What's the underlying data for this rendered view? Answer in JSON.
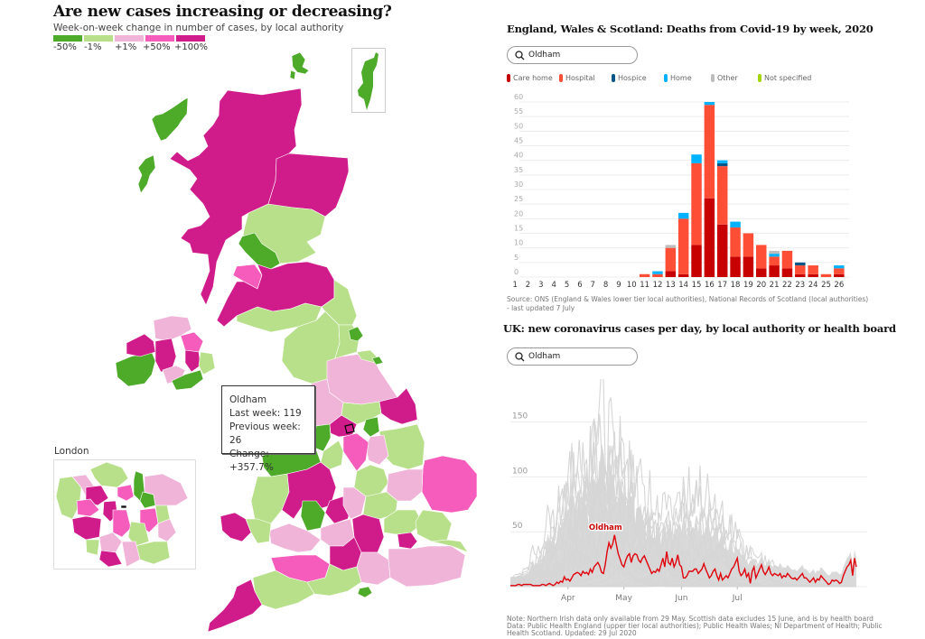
{
  "left_panel": {
    "title": "Are new cases increasing or decreasing?",
    "subtitle": "Week-on-week change in number of cases, by local authority",
    "legend": [
      {
        "label": "-50%",
        "color": "#4dab29"
      },
      {
        "label": "-1%",
        "color": "#b8e08a"
      },
      {
        "label": "+1%",
        "color": "#f0b4d8"
      },
      {
        "label": "+50%",
        "color": "#f55cbc"
      },
      {
        "label": "+100%",
        "color": "#d01c8b"
      }
    ],
    "tooltip": {
      "name": "Oldham",
      "last_week": "Last week: 119",
      "previous_week": "Previous week: 26",
      "change": "Change: +357.7%"
    },
    "london_label": "London"
  },
  "chart_data": [
    {
      "type": "bar",
      "stacked": true,
      "title": "England, Wales & Scotland: Deaths from Covid-19 by week, 2020",
      "search": {
        "value": "Oldham"
      },
      "categories": [
        "1",
        "2",
        "3",
        "4",
        "5",
        "6",
        "7",
        "8",
        "9",
        "10",
        "11",
        "12",
        "13",
        "14",
        "15",
        "16",
        "17",
        "18",
        "19",
        "20",
        "21",
        "22",
        "23",
        "24",
        "25",
        "26"
      ],
      "series": [
        {
          "name": "Care home",
          "color": "#c70000",
          "values": [
            0,
            0,
            0,
            0,
            0,
            0,
            0,
            0,
            0,
            0,
            0,
            0,
            2,
            1,
            11,
            27,
            18,
            7,
            7,
            3,
            4,
            3,
            1,
            1,
            0,
            1
          ]
        },
        {
          "name": "Hospital",
          "color": "#ff4e36",
          "values": [
            0,
            0,
            0,
            0,
            0,
            0,
            0,
            0,
            0,
            0,
            1,
            1,
            8,
            19,
            28,
            32,
            20,
            10,
            8,
            8,
            3,
            6,
            3,
            3,
            1,
            2
          ]
        },
        {
          "name": "Hospice",
          "color": "#005689",
          "values": [
            0,
            0,
            0,
            0,
            0,
            0,
            0,
            0,
            0,
            0,
            0,
            0,
            0,
            0,
            0,
            0,
            1,
            0,
            0,
            0,
            0,
            0,
            1,
            0,
            0,
            0
          ]
        },
        {
          "name": "Home",
          "color": "#00b2ff",
          "values": [
            0,
            0,
            0,
            0,
            0,
            0,
            0,
            0,
            0,
            0,
            0,
            1,
            0,
            2,
            3,
            1,
            1,
            2,
            0,
            0,
            1,
            0,
            0,
            0,
            0,
            1
          ]
        },
        {
          "name": "Other",
          "color": "#bdbdbd",
          "values": [
            0,
            0,
            0,
            0,
            0,
            0,
            0,
            0,
            0,
            0,
            0,
            0,
            1,
            0,
            0,
            0,
            0,
            0,
            0,
            0,
            1,
            0,
            0,
            0,
            0,
            0
          ]
        },
        {
          "name": "Not specified",
          "color": "#a4d40a",
          "values": [
            0,
            0,
            0,
            0,
            0,
            0,
            0,
            0,
            0,
            0,
            0,
            0,
            0,
            0,
            0,
            0,
            0,
            0,
            0,
            0,
            0,
            0,
            0,
            0,
            0,
            0
          ]
        }
      ],
      "yticks": [
        0,
        5,
        10,
        15,
        20,
        25,
        30,
        35,
        40,
        45,
        50,
        55,
        60
      ],
      "ylim": [
        0,
        60
      ],
      "xlabel": "",
      "ylabel": "",
      "grid": true,
      "legend_position": "top-left",
      "source": "Source: ONS (England & Wales lower tier local authorities), National Records of Scotland (local authorities)",
      "source_line2": "- last updated 7 July"
    },
    {
      "type": "line",
      "title": "UK: new coronavirus cases per day, by local authority or health board",
      "search": {
        "value": "Oldham"
      },
      "highlight": {
        "name": "Oldham",
        "color": "#e0000a"
      },
      "background_series_color": "#d2d2d2",
      "x_start": "2020-03-01",
      "x_end": "2020-07-27",
      "xticks": [
        "Apr",
        "May",
        "Jun",
        "Jul"
      ],
      "yticks": [
        0,
        50,
        100,
        150
      ],
      "ylim": [
        0,
        185
      ],
      "grid": true,
      "highlight_values": [
        1,
        1,
        1,
        1,
        2,
        2,
        1,
        2,
        2,
        2,
        2,
        2,
        1,
        1,
        1,
        1,
        1,
        2,
        2,
        1,
        2,
        3,
        2,
        1,
        2,
        4,
        3,
        5,
        4,
        9,
        6,
        7,
        5,
        8,
        11,
        12,
        13,
        12,
        10,
        14,
        12,
        13,
        11,
        16,
        13,
        18,
        20,
        22,
        19,
        13,
        12,
        20,
        32,
        40,
        35,
        39,
        47,
        38,
        30,
        25,
        20,
        18,
        24,
        28,
        30,
        22,
        28,
        30,
        29,
        24,
        22,
        26,
        28,
        24,
        20,
        16,
        12,
        14,
        13,
        16,
        14,
        20,
        26,
        18,
        32,
        22,
        20,
        26,
        18,
        22,
        29,
        20,
        18,
        8,
        8,
        10,
        14,
        14,
        14,
        16,
        16,
        12,
        14,
        16,
        21,
        16,
        12,
        8,
        10,
        14,
        16,
        10,
        6,
        12,
        6,
        8,
        10,
        8,
        12,
        16,
        18,
        22,
        26,
        14,
        10,
        12,
        16,
        9,
        12,
        3,
        14,
        18,
        8,
        12,
        16,
        20,
        14,
        11,
        14,
        18,
        12,
        10,
        12,
        11,
        10,
        12,
        8,
        10,
        9,
        12,
        10,
        8,
        7,
        8,
        6,
        8,
        10,
        12,
        8,
        8,
        6,
        4,
        6,
        8,
        4,
        7,
        6,
        10,
        8,
        6,
        4,
        2,
        3,
        6,
        5,
        6,
        5,
        3,
        4,
        10,
        14,
        18,
        20,
        24,
        10,
        26,
        18
      ],
      "background_profiles": [
        {
          "peak_day": 40,
          "peak": 130,
          "spread": 14
        },
        {
          "peak_day": 48,
          "peak": 180,
          "spread": 10
        },
        {
          "peak_day": 52,
          "peak": 165,
          "spread": 12
        },
        {
          "peak_day": 45,
          "peak": 140,
          "spread": 16
        },
        {
          "peak_day": 58,
          "peak": 128,
          "spread": 14
        },
        {
          "peak_day": 62,
          "peak": 120,
          "spread": 18
        },
        {
          "peak_day": 35,
          "peak": 110,
          "spread": 15
        },
        {
          "peak_day": 100,
          "peak": 105,
          "spread": 12
        },
        {
          "peak_day": 95,
          "peak": 95,
          "spread": 14
        },
        {
          "peak_day": 85,
          "peak": 80,
          "spread": 16
        },
        {
          "peak_day": 110,
          "peak": 78,
          "spread": 14
        },
        {
          "peak_day": 115,
          "peak": 65,
          "spread": 12
        },
        {
          "peak_day": 50,
          "peak": 100,
          "spread": 20
        },
        {
          "peak_day": 55,
          "peak": 90,
          "spread": 22
        },
        {
          "peak_day": 42,
          "peak": 85,
          "spread": 18
        },
        {
          "peak_day": 60,
          "peak": 75,
          "spread": 20
        },
        {
          "peak_day": 70,
          "peak": 60,
          "spread": 22
        },
        {
          "peak_day": 45,
          "peak": 70,
          "spread": 16
        },
        {
          "peak_day": 38,
          "peak": 60,
          "spread": 14
        },
        {
          "peak_day": 65,
          "peak": 55,
          "spread": 25
        },
        {
          "peak_day": 90,
          "peak": 50,
          "spread": 25
        },
        {
          "peak_day": 120,
          "peak": 40,
          "spread": 20
        },
        {
          "peak_day": 50,
          "peak": 45,
          "spread": 25
        },
        {
          "peak_day": 55,
          "peak": 35,
          "spread": 28
        },
        {
          "peak_day": 48,
          "peak": 30,
          "spread": 25
        },
        {
          "peak_day": 75,
          "peak": 30,
          "spread": 30
        },
        {
          "peak_day": 40,
          "peak": 25,
          "spread": 20
        },
        {
          "peak_day": 105,
          "peak": 35,
          "spread": 20
        }
      ],
      "note_line1": "Note: Northern Irish data only available from 29 May. Scottish data excludes 15 June, and is by health board",
      "note_line2": "Data: Public Health England (upper tier local authorities); Public Health Wales; NI Department of Health; Public",
      "note_line3": "Health Scotland. Updated: 29 Jul 2020"
    }
  ]
}
